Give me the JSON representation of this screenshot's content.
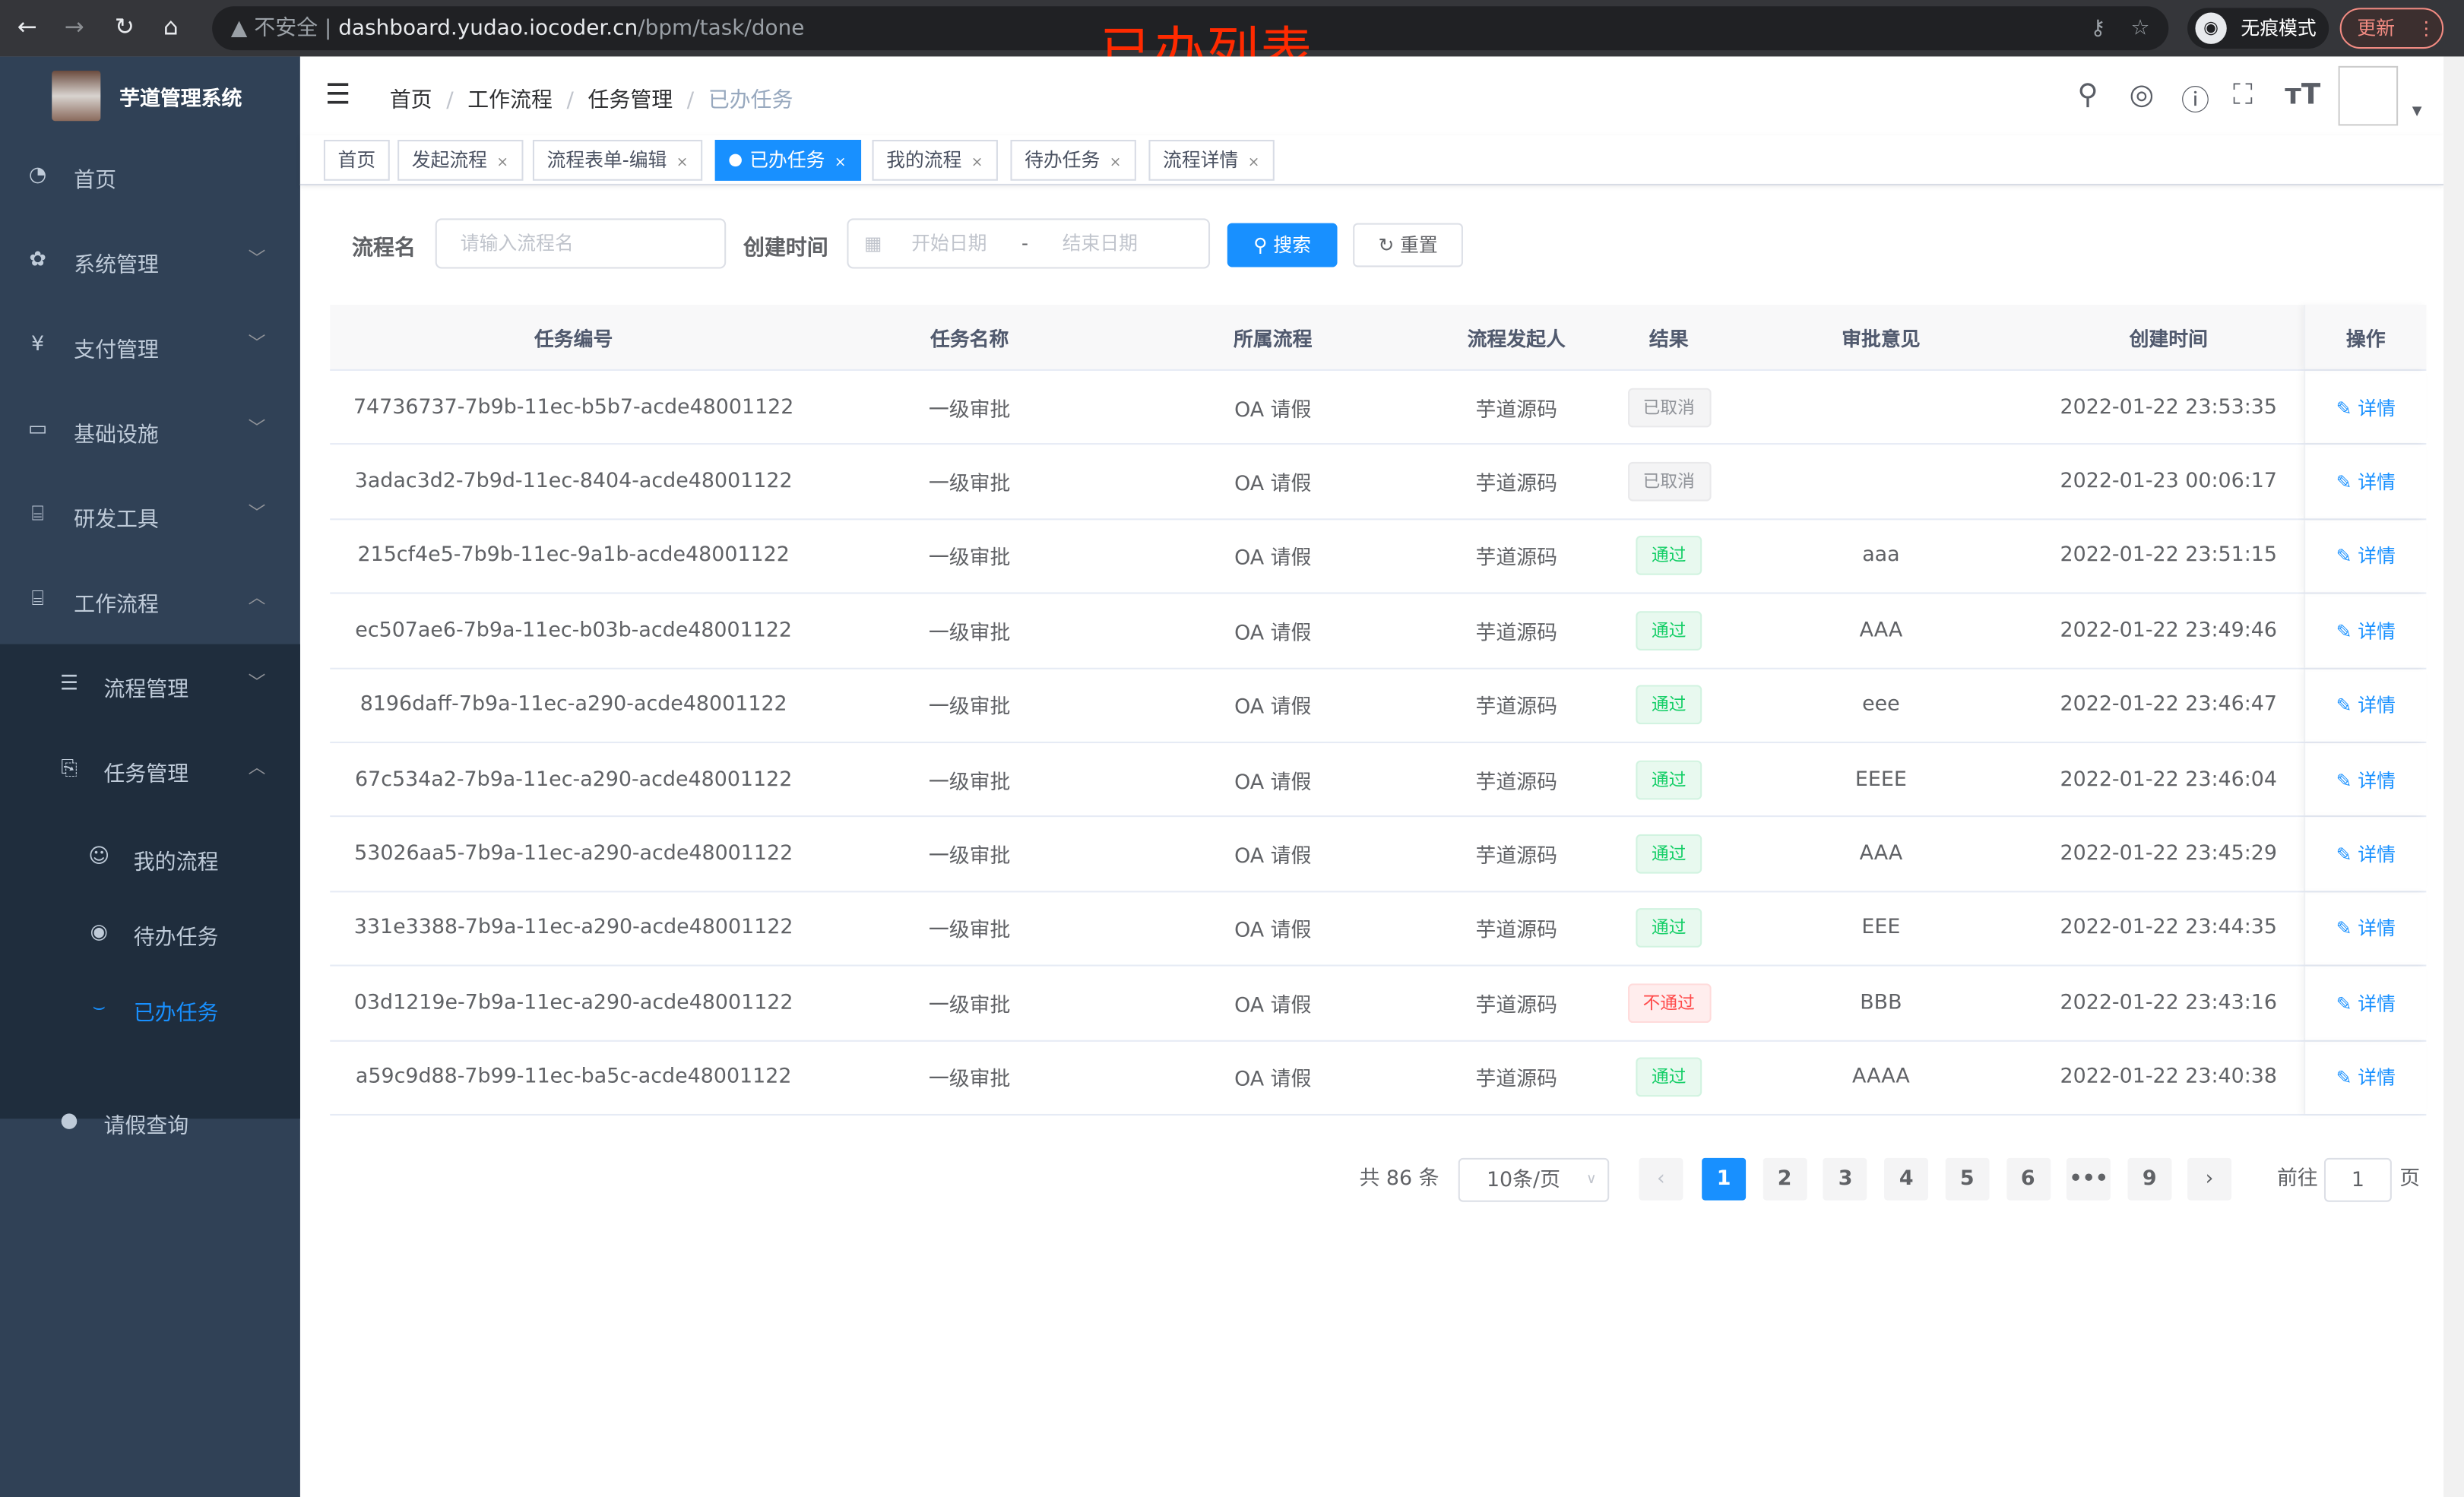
{
  "browser": {
    "back_icon": "arrow-left-icon",
    "insecure_label": "不安全",
    "url_host": "dashboard.yudao.iocoder.cn",
    "url_path": "/bpm/task/done",
    "incognito_label": "无痕模式",
    "update_label": "更新"
  },
  "overlay_title": "已办列表",
  "sidebar": {
    "title": "芋道管理系统",
    "items": [
      {
        "label": "首页",
        "icon": "dashboard-icon"
      },
      {
        "label": "系统管理",
        "icon": "gear-icon"
      },
      {
        "label": "支付管理",
        "icon": "yen-icon"
      },
      {
        "label": "基础设施",
        "icon": "monitor-icon"
      },
      {
        "label": "研发工具",
        "icon": "toolbox-icon"
      },
      {
        "label": "工作流程",
        "icon": "toolbox-icon"
      }
    ],
    "sub_items": [
      {
        "label": "流程管理",
        "icon": "list-icon"
      },
      {
        "label": "任务管理",
        "icon": "task-icon"
      },
      {
        "label": "请假查询",
        "icon": "user-icon"
      }
    ],
    "task_items": [
      {
        "label": "我的流程",
        "icon": "robot-icon"
      },
      {
        "label": "待办任务",
        "icon": "eye-icon"
      },
      {
        "label": "已办任务",
        "icon": "eye-closed-icon"
      }
    ]
  },
  "breadcrumb": [
    "首页",
    "工作流程",
    "任务管理",
    "已办任务"
  ],
  "tags": [
    "首页",
    "发起流程",
    "流程表单-编辑",
    "已办任务",
    "我的流程",
    "待办任务",
    "流程详情"
  ],
  "active_tag": "已办任务",
  "form": {
    "name_label": "流程名",
    "name_placeholder": "请输入流程名",
    "time_label": "创建时间",
    "start_placeholder": "开始日期",
    "range_sep": "-",
    "end_placeholder": "结束日期",
    "search_label": "搜索",
    "reset_label": "重置"
  },
  "table": {
    "columns": [
      "任务编号",
      "任务名称",
      "所属流程",
      "流程发起人",
      "结果",
      "审批意见",
      "创建时间",
      "操作"
    ],
    "rows": [
      {
        "id": "74736737-7b9b-11ec-b5b7-acde48001122",
        "name": "一级审批",
        "process": "OA 请假",
        "starter": "芋道源码",
        "result": "已取消",
        "status": "cancel",
        "comment": "",
        "time": "2022-01-22 23:53:35",
        "action": "详情"
      },
      {
        "id": "3adac3d2-7b9d-11ec-8404-acde48001122",
        "name": "一级审批",
        "process": "OA 请假",
        "starter": "芋道源码",
        "result": "已取消",
        "status": "cancel",
        "comment": "",
        "time": "2022-01-23 00:06:17",
        "action": "详情"
      },
      {
        "id": "215cf4e5-7b9b-11ec-9a1b-acde48001122",
        "name": "一级审批",
        "process": "OA 请假",
        "starter": "芋道源码",
        "result": "通过",
        "status": "pass",
        "comment": "aaa",
        "time": "2022-01-22 23:51:15",
        "action": "详情"
      },
      {
        "id": "ec507ae6-7b9a-11ec-b03b-acde48001122",
        "name": "一级审批",
        "process": "OA 请假",
        "starter": "芋道源码",
        "result": "通过",
        "status": "pass",
        "comment": "AAA",
        "time": "2022-01-22 23:49:46",
        "action": "详情"
      },
      {
        "id": "8196daff-7b9a-11ec-a290-acde48001122",
        "name": "一级审批",
        "process": "OA 请假",
        "starter": "芋道源码",
        "result": "通过",
        "status": "pass",
        "comment": "eee",
        "time": "2022-01-22 23:46:47",
        "action": "详情"
      },
      {
        "id": "67c534a2-7b9a-11ec-a290-acde48001122",
        "name": "一级审批",
        "process": "OA 请假",
        "starter": "芋道源码",
        "result": "通过",
        "status": "pass",
        "comment": "EEEE",
        "time": "2022-01-22 23:46:04",
        "action": "详情"
      },
      {
        "id": "53026aa5-7b9a-11ec-a290-acde48001122",
        "name": "一级审批",
        "process": "OA 请假",
        "starter": "芋道源码",
        "result": "通过",
        "status": "pass",
        "comment": "AAA",
        "time": "2022-01-22 23:45:29",
        "action": "详情"
      },
      {
        "id": "331e3388-7b9a-11ec-a290-acde48001122",
        "name": "一级审批",
        "process": "OA 请假",
        "starter": "芋道源码",
        "result": "通过",
        "status": "pass",
        "comment": "EEE",
        "time": "2022-01-22 23:44:35",
        "action": "详情"
      },
      {
        "id": "03d1219e-7b9a-11ec-a290-acde48001122",
        "name": "一级审批",
        "process": "OA 请假",
        "starter": "芋道源码",
        "result": "不通过",
        "status": "fail",
        "comment": "BBB",
        "time": "2022-01-22 23:43:16",
        "action": "详情"
      },
      {
        "id": "a59c9d88-7b99-11ec-ba5c-acde48001122",
        "name": "一级审批",
        "process": "OA 请假",
        "starter": "芋道源码",
        "result": "通过",
        "status": "pass",
        "comment": "AAAA",
        "time": "2022-01-22 23:40:38",
        "action": "详情"
      }
    ]
  },
  "pagination": {
    "total_label": "共 86 条",
    "page_size": "10条/页",
    "pages": [
      "1",
      "2",
      "3",
      "4",
      "5",
      "6",
      "•••",
      "9"
    ],
    "current": "1",
    "goto_label": "前往",
    "goto_value": "1",
    "page_suffix": "页"
  },
  "colors": {
    "primary": "#1890ff",
    "sidebar": "#304156",
    "submenu": "#1f2d3d",
    "pass": "#13ce66",
    "fail": "#ff4949",
    "overlay": "#ff2a00"
  }
}
